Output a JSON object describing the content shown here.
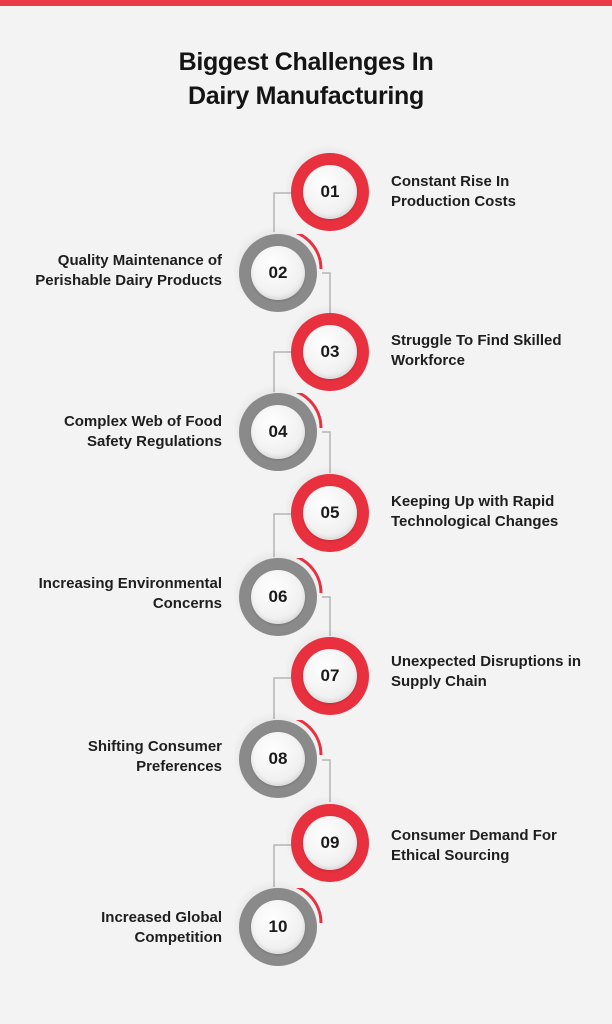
{
  "title": {
    "line1": "Biggest Challenges In",
    "line2": "Dairy Manufacturing"
  },
  "colors": {
    "accent": "#e8303e",
    "gray": "#8a8a8a",
    "background": "#f4f3f3"
  },
  "items": [
    {
      "number": "01",
      "line1": "Constant Rise In",
      "line2": "Production Costs",
      "style": "red"
    },
    {
      "number": "02",
      "line1": "Quality Maintenance of",
      "line2": "Perishable Dairy Products",
      "style": "gray"
    },
    {
      "number": "03",
      "line1": "Struggle To Find Skilled",
      "line2": "Workforce",
      "style": "red"
    },
    {
      "number": "04",
      "line1": "Complex Web of Food",
      "line2": "Safety Regulations",
      "style": "gray"
    },
    {
      "number": "05",
      "line1": "Keeping Up with Rapid",
      "line2": "Technological Changes",
      "style": "red"
    },
    {
      "number": "06",
      "line1": "Increasing Environmental",
      "line2": "Concerns",
      "style": "gray"
    },
    {
      "number": "07",
      "line1": "Unexpected Disruptions in",
      "line2": "Supply Chain",
      "style": "red"
    },
    {
      "number": "08",
      "line1": "Shifting Consumer",
      "line2": "Preferences",
      "style": "gray"
    },
    {
      "number": "09",
      "line1": "Consumer Demand For",
      "line2": "Ethical Sourcing",
      "style": "red"
    },
    {
      "number": "10",
      "line1": "Increased Global",
      "line2": "Competition",
      "style": "gray"
    }
  ]
}
